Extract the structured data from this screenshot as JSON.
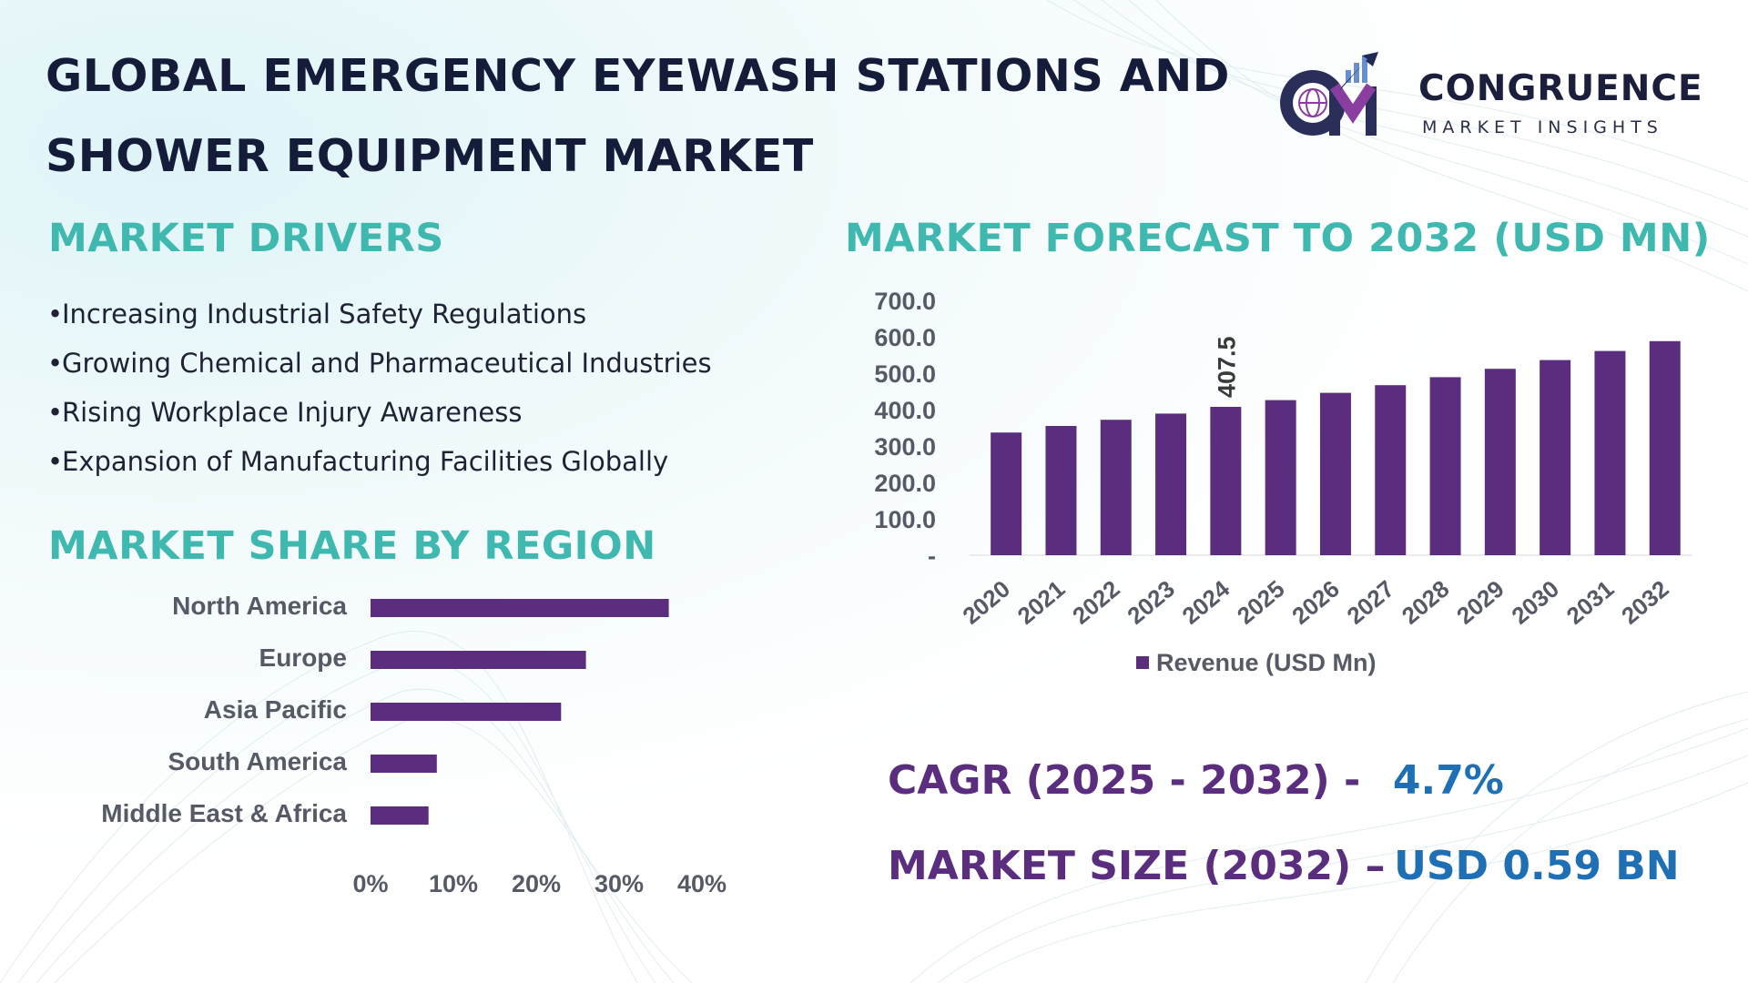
{
  "title": "GLOBAL EMERGENCY EYEWASH STATIONS AND SHOWER EQUIPMENT MARKET",
  "logo": {
    "mark_text": "CM",
    "name": "CONGRUENCE",
    "tagline": "MARKET INSIGHTS",
    "icon": "bar-growth-arrow-globe-icon"
  },
  "drivers": {
    "heading": "MARKET DRIVERS",
    "items": [
      "Increasing Industrial Safety Regulations",
      "Growing Chemical and Pharmaceutical Industries",
      "Rising Workplace Injury Awareness",
      "Expansion of Manufacturing Facilities Globally"
    ]
  },
  "region": {
    "heading": "MARKET SHARE BY REGION"
  },
  "forecast": {
    "heading": "MARKET FORECAST TO 2032 (USD MN)"
  },
  "cagr": {
    "label": "CAGR (2025 - 2032) -",
    "value": "4.7%"
  },
  "market_size": {
    "label": "MARKET SIZE (2032) –",
    "value": "USD 0.59 BN"
  },
  "colors": {
    "accent_teal": "#3fb8af",
    "bar_purple": "#5b2d7f",
    "value_blue": "#1f6fb5",
    "title_navy": "#141c3a"
  },
  "chart_data": [
    {
      "type": "bar",
      "orientation": "horizontal",
      "categories": [
        "North America",
        "Europe",
        "Asia Pacific",
        "South America",
        "Middle East & Africa"
      ],
      "values": [
        36,
        26,
        23,
        8,
        7
      ],
      "xlim": [
        0,
        40
      ],
      "xticks": [
        "0%",
        "10%",
        "20%",
        "30%",
        "40%"
      ],
      "grid": false,
      "bar_color": "#5b2d7f"
    },
    {
      "type": "bar",
      "categories": [
        "2020",
        "2021",
        "2022",
        "2023",
        "2024",
        "2025",
        "2026",
        "2027",
        "2028",
        "2029",
        "2030",
        "2031",
        "2032"
      ],
      "series": [
        {
          "name": "Revenue (USD Mn)",
          "values": [
            337,
            355,
            372,
            389,
            407.5,
            426,
            446,
            467,
            489,
            512,
            536,
            561,
            588
          ]
        }
      ],
      "ylim": [
        0,
        700
      ],
      "yticks": [
        "-",
        "100.0",
        "200.0",
        "300.0",
        "400.0",
        "500.0",
        "600.0",
        "700.0"
      ],
      "data_labels": [
        {
          "category": "2024",
          "text": "407.5"
        }
      ],
      "legend": "bottom",
      "grid": false,
      "bar_color": "#5b2d7f"
    }
  ]
}
